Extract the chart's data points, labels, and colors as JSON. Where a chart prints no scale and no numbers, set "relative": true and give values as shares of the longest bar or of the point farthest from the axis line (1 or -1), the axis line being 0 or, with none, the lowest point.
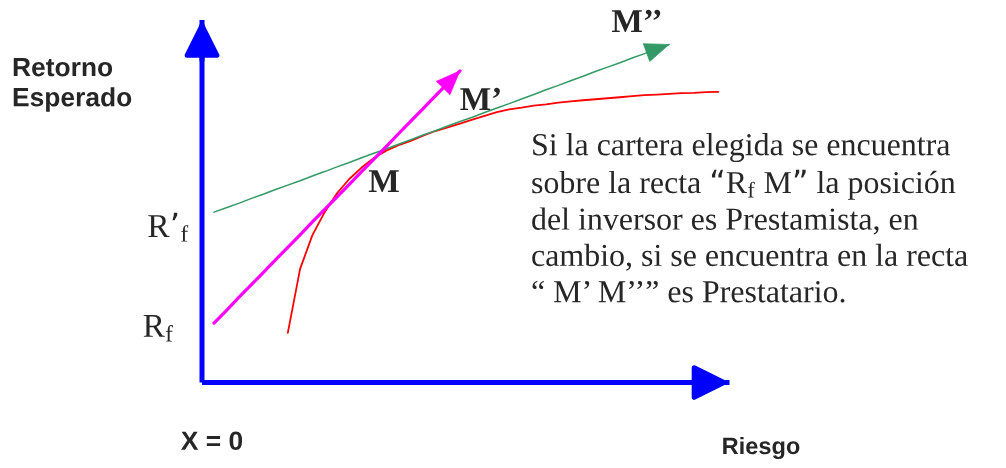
{
  "chart_data": {
    "type": "line",
    "relative": true,
    "tick_labels": false,
    "xlabel": "Riesgo",
    "ylabel": "Retorno\nEsperado",
    "categories": [
      null,
      null,
      null,
      null,
      null,
      null,
      null,
      null,
      null,
      null,
      null,
      null,
      null,
      null,
      null,
      null,
      null,
      null,
      null,
      null,
      null,
      null,
      null,
      null,
      null,
      null,
      null,
      null,
      null,
      null,
      null,
      null,
      null,
      null,
      null,
      null,
      null,
      null,
      null,
      null,
      null,
      null
    ],
    "series": [
      {
        "color": "#ff0000",
        "values": [
          null,
          null,
          null,
          null,
          null,
          null,
          0.147,
          0.336,
          0.436,
          0.504,
          0.56,
          0.602,
          0.636,
          0.664,
          0.686,
          0.702,
          0.715,
          0.73,
          0.744,
          0.755,
          0.766,
          0.778,
          0.789,
          0.8,
          0.808,
          0.813,
          0.819,
          0.823,
          0.828,
          0.832,
          0.835,
          0.838,
          0.841,
          0.844,
          0.847,
          0.85,
          0.852,
          0.854,
          0.856,
          0.857,
          0.859,
          0.86
        ]
      },
      {
        "color": "#339966",
        "values": [
          0.504,
          0.517,
          0.53,
          0.544,
          0.557,
          0.571,
          0.584,
          0.597,
          0.611,
          0.624,
          0.638,
          0.651,
          0.665,
          0.678,
          0.691,
          0.705,
          0.718,
          0.732,
          0.745,
          0.759,
          0.772,
          0.785,
          0.799,
          0.812,
          0.825,
          0.839,
          0.852,
          0.866,
          0.879,
          0.893,
          0.906,
          0.92,
          0.933,
          0.946,
          0.96,
          0.973,
          0.987,
          1,
          null,
          null,
          null,
          null
        ]
      },
      {
        "color": "#ff00ff",
        "values": [
          0.176,
          0.213,
          0.251,
          0.288,
          0.325,
          0.363,
          0.4,
          0.437,
          0.475,
          0.512,
          0.549,
          0.586,
          0.624,
          0.661,
          0.698,
          0.736,
          0.773,
          0.81,
          0.848,
          0.885,
          0.922,
          null,
          null,
          null,
          null,
          null,
          null,
          null,
          null,
          null,
          null,
          null,
          null,
          null,
          null,
          null,
          null,
          null,
          null,
          null,
          null,
          null
        ]
      }
    ],
    "annotations": [
      "Si la cartera elegida se encuentra\nsobre la recta “R$_{f}$ M” la posición\ndel inversor es Prestamista, en\ncambio, si se encuentra en la recta\n“ M’ M’’” es Prestatario.",
      "M",
      "M’",
      "M’’",
      "R’$_{f}$",
      "R$_{f}$",
      "X = 0"
    ]
  }
}
